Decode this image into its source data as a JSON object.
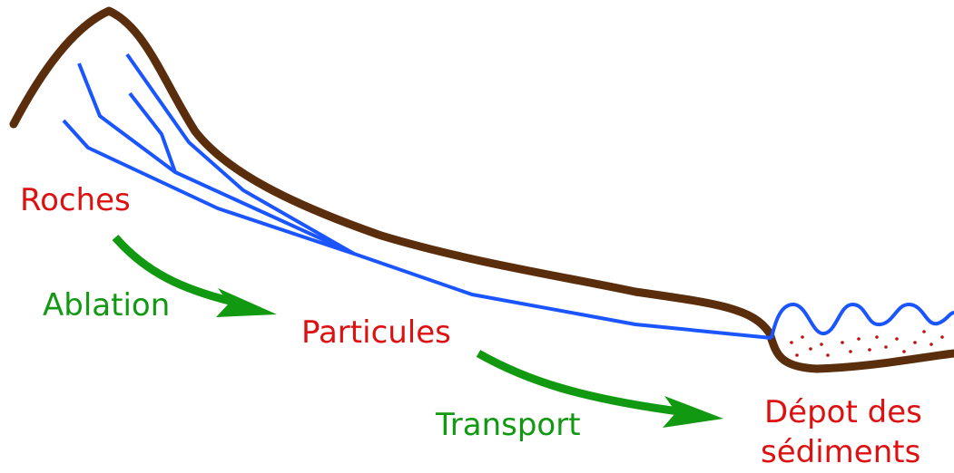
{
  "labels": {
    "rocks": "Roches",
    "ablation": "Ablation",
    "particles": "Particules",
    "transport": "Transport",
    "deposit": [
      "Dépot des",
      "sédiments"
    ]
  }
}
